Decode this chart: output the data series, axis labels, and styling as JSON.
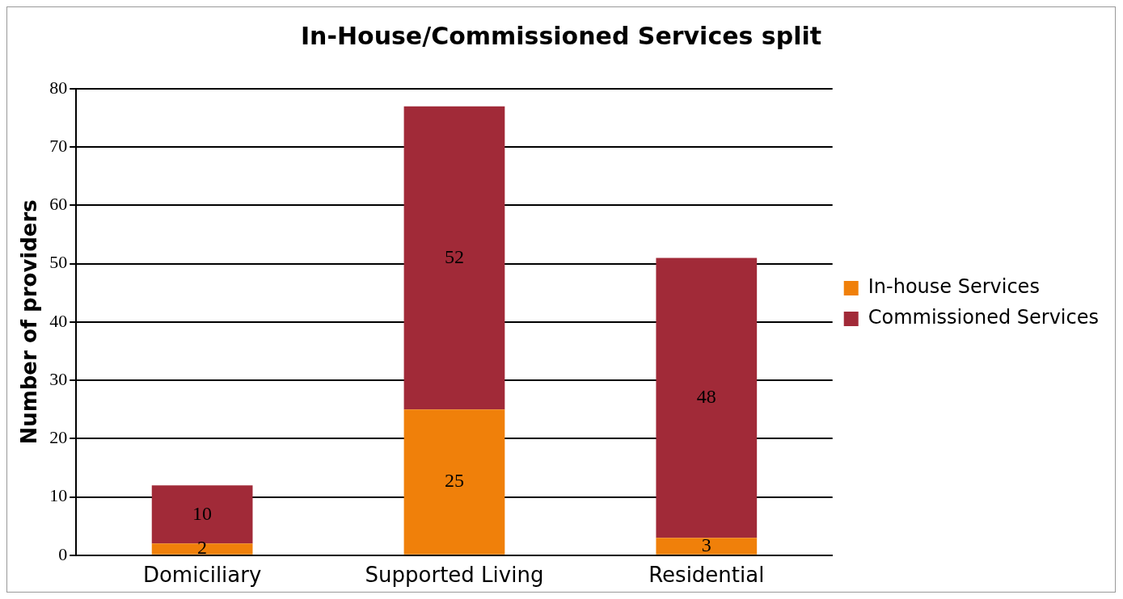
{
  "chart_data": {
    "type": "bar",
    "title": "In-House/Commissioned Services split",
    "ylabel": "Number of providers",
    "categories": [
      "Domiciliary",
      "Supported Living",
      "Residential"
    ],
    "series": [
      {
        "name": "In-house Services",
        "color": "#f0800a",
        "values": [
          2,
          25,
          3
        ]
      },
      {
        "name": "Commissioned Services",
        "color": "#a12a38",
        "values": [
          10,
          52,
          48
        ]
      }
    ],
    "stacked": true,
    "ylim": [
      0,
      80
    ],
    "yticks": [
      0,
      10,
      20,
      30,
      40,
      50,
      60,
      70,
      80
    ],
    "grid": "y",
    "legend": "right",
    "data_labels": true
  }
}
